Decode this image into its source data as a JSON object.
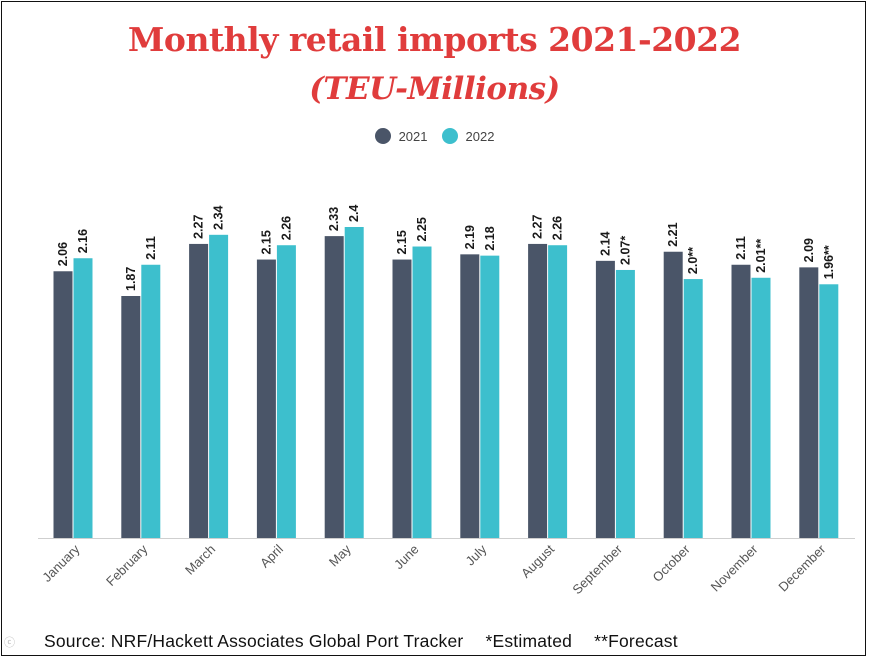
{
  "chart_data": {
    "type": "bar",
    "title": "Monthly retail imports 2021-2022",
    "subtitle": "(TEU-Millions)",
    "categories": [
      "January",
      "February",
      "March",
      "April",
      "May",
      "June",
      "July",
      "August",
      "September",
      "October",
      "November",
      "December"
    ],
    "series": [
      {
        "name": "2021",
        "color": "#4a5568",
        "values": [
          2.06,
          1.87,
          2.27,
          2.15,
          2.33,
          2.15,
          2.19,
          2.27,
          2.14,
          2.21,
          2.11,
          2.09
        ],
        "labels": [
          "2.06",
          "1.87",
          "2.27",
          "2.15",
          "2.33",
          "2.15",
          "2.19",
          "2.27",
          "2.14",
          "2.21",
          "2.11",
          "2.09"
        ]
      },
      {
        "name": "2022",
        "color": "#3dbfcd",
        "values": [
          2.16,
          2.11,
          2.34,
          2.26,
          2.4,
          2.25,
          2.18,
          2.26,
          2.07,
          2.0,
          2.01,
          1.96
        ],
        "labels": [
          "2.16",
          "2.11",
          "2.34",
          "2.26",
          "2.4",
          "2.25",
          "2.18",
          "2.26",
          "2.07*",
          "2.0**",
          "2.01**",
          "1.96**"
        ]
      }
    ],
    "ylim": [
      0,
      2.4
    ],
    "xlabel": "",
    "ylabel": "",
    "grid": false,
    "legend": "top-center"
  },
  "footer": {
    "source": "Source: NRF/Hackett Associates Global Port Tracker",
    "estimated": "*Estimated",
    "forecast": "**Forecast"
  }
}
